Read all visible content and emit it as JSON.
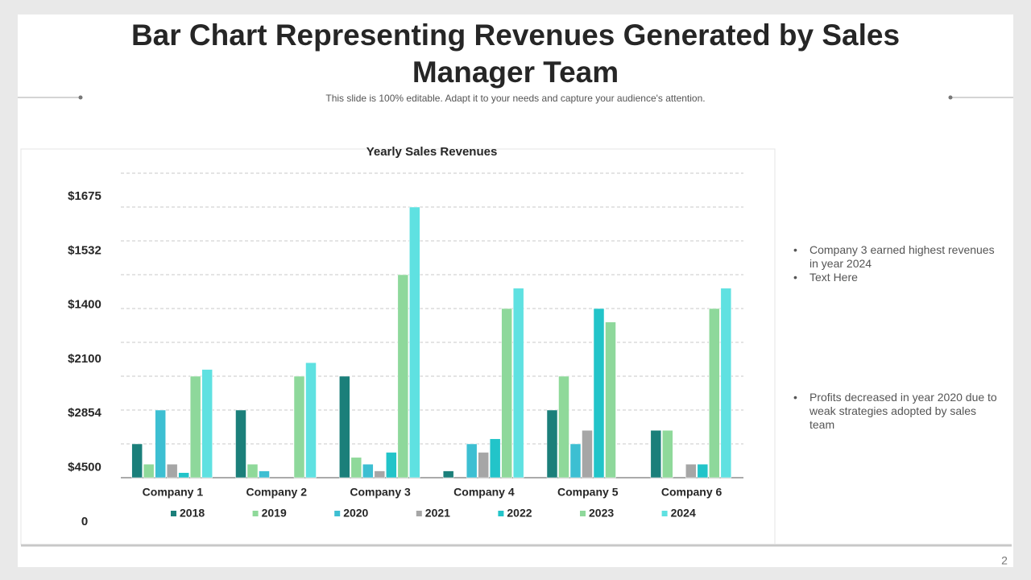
{
  "title": "Bar Chart Representing Revenues Generated by Sales Manager Team",
  "subtitle": "This slide is 100% editable. Adapt it to your needs and capture your audience's attention.",
  "page_number": "2",
  "notes": [
    [
      "Company 3 earned highest revenues in year 2024",
      "Text Here"
    ],
    [
      "Profits decreased in year 2020 due to weak strategies adopted by sales team"
    ]
  ],
  "chart_data": {
    "type": "bar",
    "title": "Yearly  Sales Revenues",
    "y_axis_labels": [
      "$1675",
      "$1532",
      "$1400",
      "$2100",
      "$2854",
      "$4500",
      "0"
    ],
    "categories": [
      "Company 1",
      "Company 2",
      "Company 3",
      "Company 4",
      "Company 5",
      "Company 6"
    ],
    "ylim": [
      0,
      9
    ],
    "gridlines": [
      1,
      2,
      3,
      4,
      5,
      6,
      7,
      8,
      9
    ],
    "grid": true,
    "series": [
      {
        "name": "2018",
        "color": "#1b7f7a",
        "values": [
          1.0,
          2.0,
          3.0,
          0.2,
          2.0,
          1.4
        ]
      },
      {
        "name": "2019",
        "color": "#8fd99a",
        "values": [
          0.4,
          0.4,
          0.6,
          0,
          3.0,
          1.4
        ]
      },
      {
        "name": "2020",
        "color": "#3dbfd2",
        "values": [
          2.0,
          0.2,
          0.4,
          1.0,
          1.0,
          0
        ]
      },
      {
        "name": "2021",
        "color": "#a6a6a6",
        "values": [
          0.4,
          0,
          0.2,
          0.75,
          1.4,
          0.4
        ]
      },
      {
        "name": "2022",
        "color": "#22c4c9",
        "values": [
          0.15,
          0,
          0.75,
          1.15,
          5.0,
          0.4
        ]
      },
      {
        "name": "2023",
        "color": "#8ed89b",
        "values": [
          3.0,
          3.0,
          6.0,
          5.0,
          4.6,
          5.0
        ]
      },
      {
        "name": "2024",
        "color": "#5fe1e1",
        "values": [
          3.2,
          3.4,
          8.0,
          5.6,
          0,
          5.6
        ]
      }
    ]
  }
}
